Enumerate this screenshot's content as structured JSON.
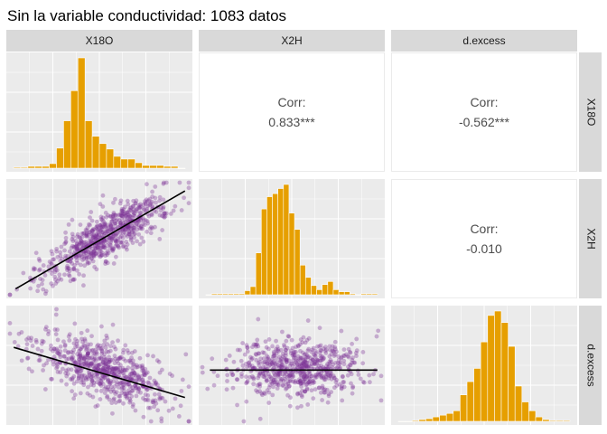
{
  "title": "Sin la variable conductividad: 1083 datos",
  "variables": [
    "X18O",
    "X2H",
    "d.excess"
  ],
  "colors": {
    "panel_bg": "#ebebeb",
    "grid": "#ffffff",
    "strip_bg": "#d9d9d9",
    "hist_fill": "#e69f00",
    "point": "#7b3294",
    "line": "#000000",
    "corr_text": "#4d4d4d"
  },
  "chart_data": {
    "type": "scatterplot-matrix",
    "n": 1083,
    "correlations": [
      {
        "row": "X18O",
        "col": "X2H",
        "label": "Corr:",
        "value": "0.833***"
      },
      {
        "row": "X18O",
        "col": "d.excess",
        "label": "Corr:",
        "value": "-0.562***"
      },
      {
        "row": "X2H",
        "col": "d.excess",
        "label": "Corr:",
        "value": "-0.010"
      }
    ],
    "histograms": [
      {
        "variable": "X18O",
        "counts": [
          1,
          1,
          2,
          2,
          2,
          5,
          22,
          52,
          85,
          121,
          52,
          35,
          27,
          21,
          13,
          10,
          10,
          6,
          3,
          3,
          3,
          2,
          2,
          0
        ]
      },
      {
        "variable": "X2H",
        "counts": [
          0,
          1,
          1,
          1,
          1,
          1,
          1,
          4,
          8,
          41,
          84,
          96,
          99,
          104,
          108,
          80,
          64,
          29,
          17,
          9,
          5,
          10,
          13,
          5,
          3,
          3,
          1,
          0,
          1,
          1,
          1
        ]
      },
      {
        "variable": "d.excess",
        "counts": [
          0,
          0,
          1,
          2,
          3,
          5,
          7,
          9,
          12,
          30,
          45,
          60,
          90,
          120,
          125,
          112,
          85,
          40,
          22,
          12,
          5,
          2,
          1,
          1,
          1
        ]
      }
    ],
    "scatter_pairs": [
      {
        "x": "X18O",
        "y": "X2H",
        "fit": "linear",
        "slope": "positive"
      },
      {
        "x": "X18O",
        "y": "d.excess",
        "fit": "linear",
        "slope": "negative"
      },
      {
        "x": "X2H",
        "y": "d.excess",
        "fit": "linear",
        "slope": "flat"
      }
    ]
  }
}
